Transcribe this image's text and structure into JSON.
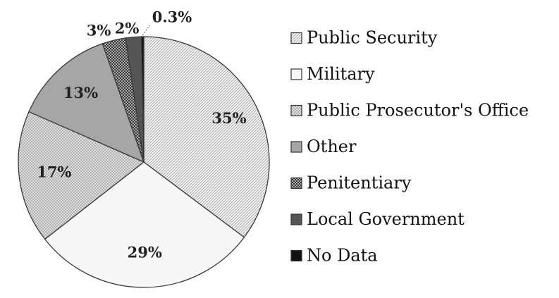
{
  "chart_data": {
    "type": "pie",
    "title": "",
    "start": "top",
    "direction": "clockwise",
    "legend_position": "right",
    "slices": [
      {
        "label": "Public Security",
        "value": 35,
        "display": "35%",
        "color": "#f2f2f2",
        "pattern": "fine-dots"
      },
      {
        "label": "Military",
        "value": 29,
        "display": "29%",
        "color": "#f7f7f7",
        "pattern": "none"
      },
      {
        "label": "Public Prosecutor's Office",
        "value": 17,
        "display": "17%",
        "color": "#d9d9d9",
        "pattern": "dots"
      },
      {
        "label": "Other",
        "value": 13,
        "display": "13%",
        "color": "#a6a6a6",
        "pattern": "none"
      },
      {
        "label": "Penitentiary",
        "value": 3,
        "display": "3%",
        "color": "#7f7f7f",
        "pattern": "checker"
      },
      {
        "label": "Local Government",
        "value": 2,
        "display": "2%",
        "color": "#555555",
        "pattern": "none"
      },
      {
        "label": "No Data",
        "value": 0.3,
        "display": "0.3%",
        "color": "#111111",
        "pattern": "none"
      }
    ]
  }
}
